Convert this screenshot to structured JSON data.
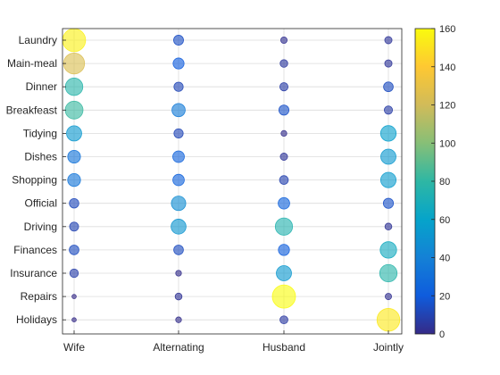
{
  "chart_data": {
    "type": "scatter",
    "title": "",
    "xlabel": "",
    "ylabel": "",
    "x_categories": [
      "Wife",
      "Alternating",
      "Husband",
      "Jointly"
    ],
    "y_categories": [
      "Laundry",
      "Main-meal",
      "Dinner",
      "Breakfeast",
      "Tidying",
      "Dishes",
      "Shopping",
      "Official",
      "Driving",
      "Finances",
      "Insurance",
      "Repairs",
      "Holidays"
    ],
    "values": [
      [
        156,
        14,
        2,
        4
      ],
      [
        124,
        20,
        5,
        4
      ],
      [
        77,
        11,
        7,
        13
      ],
      [
        82,
        36,
        15,
        7
      ],
      [
        53,
        11,
        1,
        57
      ],
      [
        32,
        24,
        4,
        53
      ],
      [
        33,
        23,
        9,
        55
      ],
      [
        12,
        46,
        23,
        15
      ],
      [
        10,
        51,
        75,
        3
      ],
      [
        13,
        13,
        21,
        66
      ],
      [
        8,
        1,
        53,
        77
      ],
      [
        0,
        3,
        160,
        2
      ],
      [
        0,
        1,
        6,
        153
      ]
    ],
    "colorbar": {
      "range": [
        0,
        160
      ],
      "ticks": [
        "0",
        "20",
        "40",
        "60",
        "80",
        "100",
        "120",
        "140",
        "160"
      ],
      "colormap": "parula"
    },
    "grid": true
  }
}
